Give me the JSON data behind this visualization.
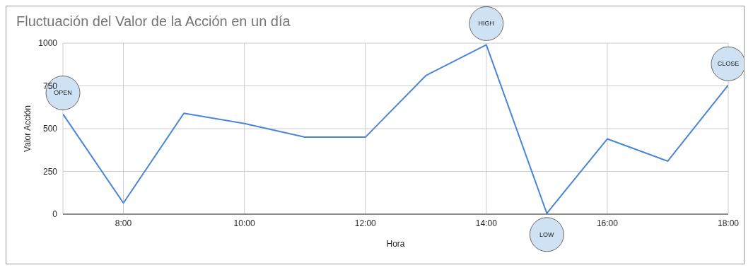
{
  "chart_data": {
    "type": "line",
    "title": "Fluctuación del Valor de la Acción en un día",
    "xlabel": "Hora",
    "ylabel": "Valor Acción",
    "x": [
      7,
      8,
      9,
      10,
      11,
      12,
      13,
      14,
      15,
      16,
      17,
      18
    ],
    "series": [
      {
        "color": "#4a86d8",
        "values": [
          585,
          65,
          590,
          530,
          450,
          450,
          810,
          990,
          5,
          440,
          310,
          755
        ]
      }
    ],
    "xlim": [
      7,
      18
    ],
    "xticks": [
      {
        "value": 8,
        "label": "8:00"
      },
      {
        "value": 10,
        "label": "10:00"
      },
      {
        "value": 12,
        "label": "12:00"
      },
      {
        "value": 14,
        "label": "14:00"
      },
      {
        "value": 16,
        "label": "16:00"
      },
      {
        "value": 18,
        "label": "18:00"
      }
    ],
    "ylim": [
      0,
      1000
    ],
    "yticks": [
      0,
      250,
      500,
      750,
      1000
    ],
    "grid": true,
    "legend": false,
    "marker": "none",
    "line_style": "solid",
    "annotations": [
      {
        "text": "OPEN",
        "x": 7,
        "y": 585
      },
      {
        "text": "HIGH",
        "x": 14,
        "y": 990
      },
      {
        "text": "LOW",
        "x": 15,
        "y": 5
      },
      {
        "text": "CLOSE",
        "x": 18,
        "y": 755
      }
    ]
  }
}
